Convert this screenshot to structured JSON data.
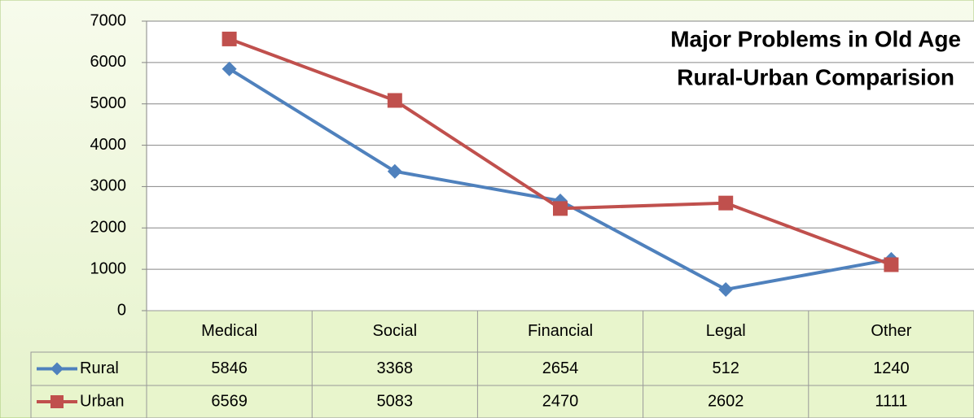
{
  "chart_data": {
    "type": "line",
    "title": "Major Problems in Old Age",
    "subtitle": "Rural-Urban Comparision",
    "categories": [
      "Medical",
      "Social",
      "Financial",
      "Legal",
      "Other"
    ],
    "series": [
      {
        "name": "Rural",
        "color": "#4f81bd",
        "marker": "diamond",
        "values": [
          5846,
          3368,
          2654,
          512,
          1240
        ]
      },
      {
        "name": "Urban",
        "color": "#c0504d",
        "marker": "square",
        "values": [
          6569,
          5083,
          2470,
          2602,
          1111
        ]
      }
    ],
    "ylim": [
      0,
      7000
    ],
    "yticks": [
      0,
      1000,
      2000,
      3000,
      4000,
      5000,
      6000,
      7000
    ],
    "grid": true,
    "data_table": true
  }
}
